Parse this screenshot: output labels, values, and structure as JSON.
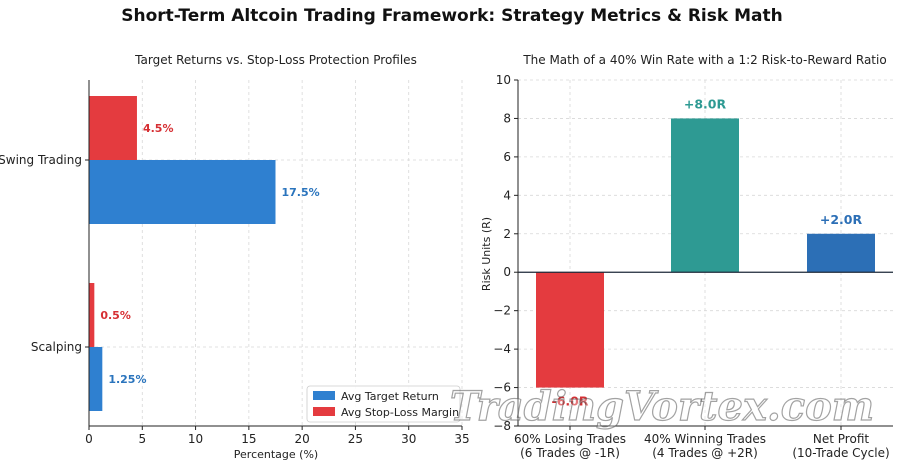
{
  "title": "Short-Term Altcoin Trading Framework: Strategy Metrics & Risk Math",
  "watermark": "TradingVortex.com",
  "chart_data": [
    {
      "type": "bar",
      "orientation": "horizontal",
      "title": "Target Returns vs. Stop-Loss Protection Profiles",
      "xlabel": "Percentage (%)",
      "ylabel": "",
      "categories": [
        "Scalping",
        "Swing Trading"
      ],
      "xlim": [
        0,
        35
      ],
      "xticks": [
        "0",
        "5",
        "10",
        "15",
        "20",
        "25",
        "30",
        "35"
      ],
      "grid": true,
      "legend_position": "lower-right",
      "series": [
        {
          "name": "Avg Target Return",
          "values": [
            1.25,
            17.5
          ],
          "labels": [
            "1.25%",
            "17.5%"
          ],
          "color": "#2f80d0",
          "label_color": "#2a74bd"
        },
        {
          "name": "Avg Stop-Loss Margin",
          "values": [
            0.5,
            4.5
          ],
          "labels": [
            "0.5%",
            "4.5%"
          ],
          "color": "#e43b3f",
          "label_color": "#d62f33"
        }
      ]
    },
    {
      "type": "bar",
      "orientation": "vertical",
      "title": "The Math of a 40% Win Rate with a 1:2 Risk-to-Reward Ratio",
      "xlabel": "",
      "ylabel": "Risk Units (R)",
      "ylim": [
        -8,
        10
      ],
      "yticks": [
        "−8",
        "−6",
        "−4",
        "−2",
        "0",
        "2",
        "4",
        "6",
        "8",
        "10"
      ],
      "grid": true,
      "categories": [
        [
          "60% Losing Trades",
          "(6 Trades @ -1R)"
        ],
        [
          "40% Winning Trades",
          "(4 Trades @ +2R)"
        ],
        [
          "Net Profit",
          "(10-Trade Cycle)"
        ]
      ],
      "values": [
        -6.0,
        8.0,
        2.0
      ],
      "labels": [
        "-6.0R",
        "+8.0R",
        "+2.0R"
      ],
      "colors": [
        "#e43b3f",
        "#2e9a93",
        "#2c6fb6"
      ],
      "label_colors": [
        "#d62f33",
        "#2e9a93",
        "#2c6fb6"
      ]
    }
  ]
}
